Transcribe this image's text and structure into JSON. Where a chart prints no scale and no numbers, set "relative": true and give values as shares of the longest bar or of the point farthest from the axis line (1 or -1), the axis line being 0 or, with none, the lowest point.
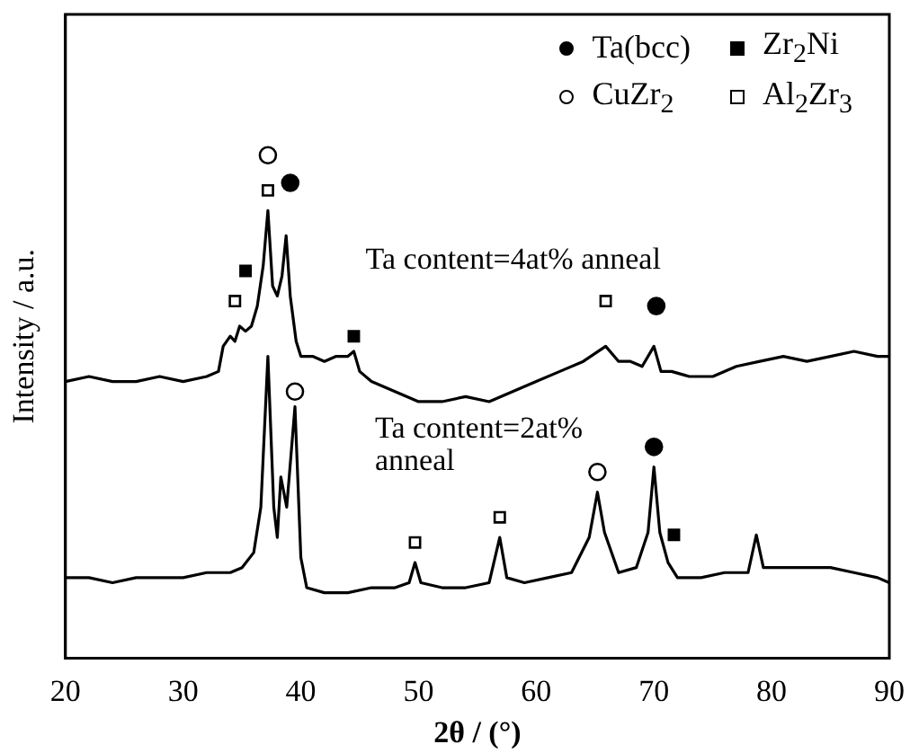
{
  "chart_data": {
    "type": "line",
    "xlabel": "2θ / (°)",
    "ylabel": "Intensity / a.u.",
    "relative": true,
    "xlim": [
      20,
      90
    ],
    "xticks": [
      20,
      30,
      40,
      50,
      60,
      70,
      80,
      90
    ],
    "legend": "top right",
    "annotations": [
      "Ta content=4at% anneal",
      "Ta content=2at% anneal"
    ],
    "series": [
      {
        "color": "#000000",
        "x": [
          20,
          22,
          24,
          26,
          28,
          30,
          32,
          33,
          33.4,
          34,
          34.4,
          34.8,
          35.3,
          35.8,
          36.3,
          36.8,
          37.2,
          37.6,
          38,
          38.4,
          38.75,
          39.1,
          39.6,
          40,
          41,
          42,
          43,
          44,
          44.5,
          45,
          46,
          48,
          50,
          52,
          54,
          56,
          58,
          60,
          62,
          64,
          65.9,
          67,
          68,
          69,
          70,
          70.6,
          71.5,
          73,
          75,
          77,
          79,
          81,
          83,
          85,
          87,
          89,
          90
        ],
        "values": [
          0.55,
          0.56,
          0.55,
          0.55,
          0.56,
          0.55,
          0.56,
          0.57,
          0.62,
          0.64,
          0.63,
          0.66,
          0.65,
          0.66,
          0.7,
          0.78,
          0.89,
          0.74,
          0.72,
          0.76,
          0.84,
          0.72,
          0.63,
          0.6,
          0.6,
          0.59,
          0.6,
          0.6,
          0.61,
          0.57,
          0.55,
          0.53,
          0.51,
          0.51,
          0.52,
          0.51,
          0.53,
          0.55,
          0.57,
          0.59,
          0.62,
          0.59,
          0.59,
          0.58,
          0.62,
          0.57,
          0.57,
          0.56,
          0.56,
          0.58,
          0.59,
          0.6,
          0.59,
          0.6,
          0.61,
          0.6,
          0.6
        ]
      },
      {
        "color": "#000000",
        "x": [
          20,
          22,
          24,
          26,
          28,
          30,
          32,
          34,
          35,
          36,
          36.6,
          37.2,
          37.7,
          38,
          38.3,
          38.8,
          39.5,
          40,
          40.5,
          42,
          44,
          46,
          48,
          49.2,
          49.7,
          50.2,
          52,
          54,
          56,
          56.9,
          57.5,
          59,
          61,
          63,
          64.5,
          65.2,
          65.8,
          67,
          68.5,
          69.5,
          70,
          70.5,
          71.2,
          72,
          74,
          76,
          78,
          78.7,
          79.3,
          81,
          83,
          85,
          87,
          89,
          90
        ],
        "values": [
          0.16,
          0.16,
          0.15,
          0.16,
          0.16,
          0.16,
          0.17,
          0.17,
          0.18,
          0.21,
          0.3,
          0.6,
          0.3,
          0.24,
          0.36,
          0.3,
          0.5,
          0.2,
          0.14,
          0.13,
          0.13,
          0.14,
          0.14,
          0.15,
          0.19,
          0.15,
          0.14,
          0.14,
          0.15,
          0.24,
          0.16,
          0.15,
          0.16,
          0.17,
          0.24,
          0.33,
          0.25,
          0.17,
          0.18,
          0.25,
          0.38,
          0.25,
          0.19,
          0.16,
          0.16,
          0.17,
          0.17,
          0.245,
          0.18,
          0.18,
          0.18,
          0.18,
          0.17,
          0.16,
          0.15
        ]
      },
      {
        "type": "scatter",
        "name": "Ta(bcc)",
        "color": "#000000",
        "marker": "circle",
        "x": [
          39.1,
          70.2,
          70
        ],
        "values": [
          0.945,
          0.7,
          0.42
        ]
      },
      {
        "type": "scatter",
        "name": "Zr$_{2}$Ni",
        "color": "#000000",
        "marker": "square",
        "x": [
          35.3,
          44.5,
          71.7
        ],
        "values": [
          0.77,
          0.64,
          0.245
        ]
      },
      {
        "type": "scatter",
        "name": "CuZr$_{2}$",
        "color": "#ffffff",
        "marker": "circle",
        "x": [
          37.2,
          39.5,
          65.2
        ],
        "values": [
          1.0,
          0.53,
          0.37
        ]
      },
      {
        "type": "scatter",
        "name": "Al$_{2}$Zr$_{3}$",
        "color": "#ffffff",
        "marker": "square",
        "x": [
          34.4,
          37.2,
          65.9,
          49.7,
          56.9
        ],
        "values": [
          0.71,
          0.93,
          0.71,
          0.23,
          0.28
        ]
      }
    ]
  }
}
